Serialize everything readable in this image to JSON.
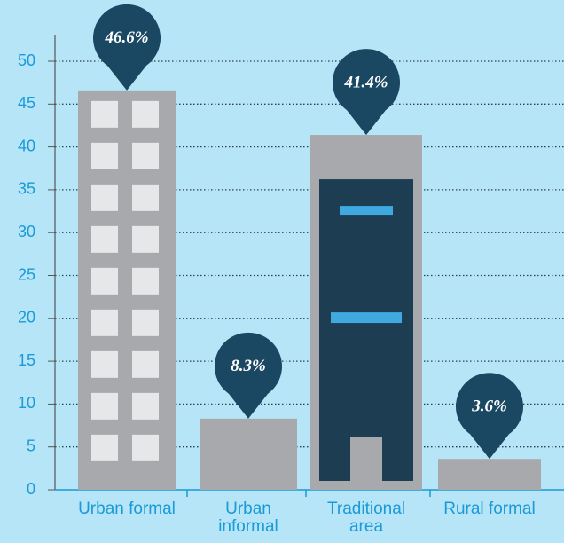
{
  "chart_data": {
    "type": "bar",
    "categories": [
      "Urban formal",
      "Urban informal",
      "Traditional area",
      "Rural formal"
    ],
    "values": [
      46.6,
      8.3,
      41.4,
      3.6
    ],
    "value_labels": [
      "46.6%",
      "8.3%",
      "41.4%",
      "3.6%"
    ],
    "color": "#a7a9ac",
    "ylim": [
      0,
      50
    ],
    "yticks": [
      0,
      5,
      10,
      15,
      20,
      25,
      30,
      35,
      40,
      45,
      50
    ],
    "grid": true
  }
}
